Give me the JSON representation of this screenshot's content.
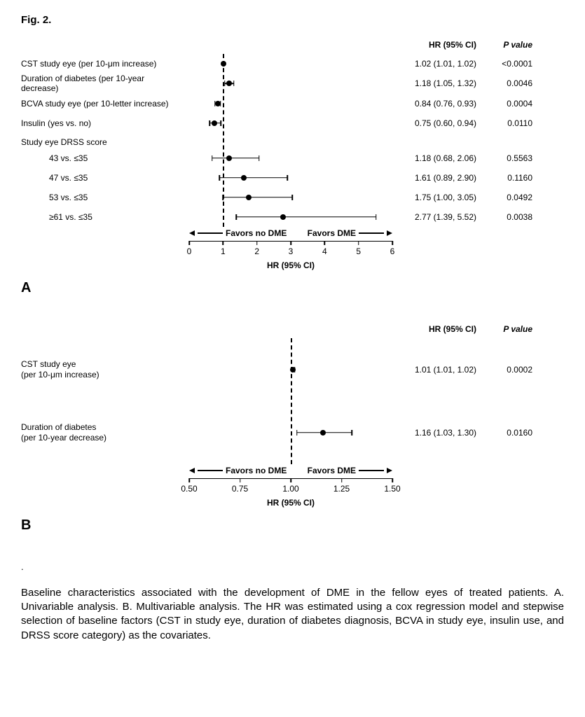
{
  "figure_title": "Fig. 2.",
  "headers": {
    "hr": "HR (95% CI)",
    "p": "P value"
  },
  "axis_label": "HR (95% CI)",
  "favors_left": "Favors no DME",
  "favors_right": "Favors DME",
  "panelA": {
    "letter": "A",
    "xmin": 0,
    "xmax": 6,
    "ref": 1,
    "ticks": [
      0,
      1,
      2,
      3,
      4,
      5,
      6
    ],
    "rows": [
      {
        "label": "CST study eye (per 10-μm increase)",
        "hr": 1.02,
        "lo": 1.01,
        "hi": 1.02,
        "hr_text": "1.02 (1.01, 1.02)",
        "p": "<0.0001"
      },
      {
        "label": "Duration of diabetes (per 10-year decrease)",
        "hr": 1.18,
        "lo": 1.05,
        "hi": 1.32,
        "hr_text": "1.18 (1.05, 1.32)",
        "p": "0.0046"
      },
      {
        "label": "BCVA study eye (per 10-letter increase)",
        "hr": 0.84,
        "lo": 0.76,
        "hi": 0.93,
        "hr_text": "0.84 (0.76, 0.93)",
        "p": "0.0004"
      },
      {
        "label": "Insulin (yes vs. no)",
        "hr": 0.75,
        "lo": 0.6,
        "hi": 0.94,
        "hr_text": "0.75 (0.60, 0.94)",
        "p": "0.0110"
      }
    ],
    "section_label": "Study eye DRSS score",
    "drss_rows": [
      {
        "label": "43 vs. ≤35",
        "hr": 1.18,
        "lo": 0.68,
        "hi": 2.06,
        "hr_text": "1.18 (0.68, 2.06)",
        "p": "0.5563",
        "indent": true
      },
      {
        "label": "47 vs. ≤35",
        "hr": 1.61,
        "lo": 0.89,
        "hi": 2.9,
        "hr_text": "1.61 (0.89, 2.90)",
        "p": "0.1160",
        "indent": true
      },
      {
        "label": "53 vs. ≤35",
        "hr": 1.75,
        "lo": 1.0,
        "hi": 3.05,
        "hr_text": "1.75 (1.00, 3.05)",
        "p": "0.0492",
        "indent": true
      },
      {
        "label": "≥61 vs. ≤35",
        "hr": 2.77,
        "lo": 1.39,
        "hi": 5.52,
        "hr_text": "2.77 (1.39, 5.52)",
        "p": "0.0038",
        "indent": true
      }
    ]
  },
  "panelB": {
    "letter": "B",
    "xmin": 0.5,
    "xmax": 1.5,
    "ref": 1.0,
    "ticks": [
      0.5,
      0.75,
      1.0,
      1.25,
      1.5
    ],
    "tick_labels": [
      "0.50",
      "0.75",
      "1.00",
      "1.25",
      "1.50"
    ],
    "rows": [
      {
        "label_l1": "CST study eye",
        "label_l2": "(per 10-μm increase)",
        "hr": 1.01,
        "lo": 1.01,
        "hi": 1.02,
        "hr_text": "1.01 (1.01, 1.02)",
        "p": "0.0002"
      },
      {
        "label_l1": "Duration of diabetes",
        "label_l2": "(per 10-year decrease)",
        "hr": 1.16,
        "lo": 1.03,
        "hi": 1.3,
        "hr_text": "1.16 (1.03, 1.30)",
        "p": "0.0160"
      }
    ]
  },
  "caption_dot": ".",
  "caption": "Baseline characteristics associated with the development of DME in the fellow eyes of treated patients. A. Univariable analysis. B. Multivariable analysis. The HR was estimated using a cox regression model and stepwise selection of baseline factors (CST in study eye, duration of diabetes diagnosis, BCVA in study eye,  insulin use, and DRSS score category) as the covariates.",
  "colors": {
    "fg": "#000000",
    "bg": "#ffffff"
  }
}
